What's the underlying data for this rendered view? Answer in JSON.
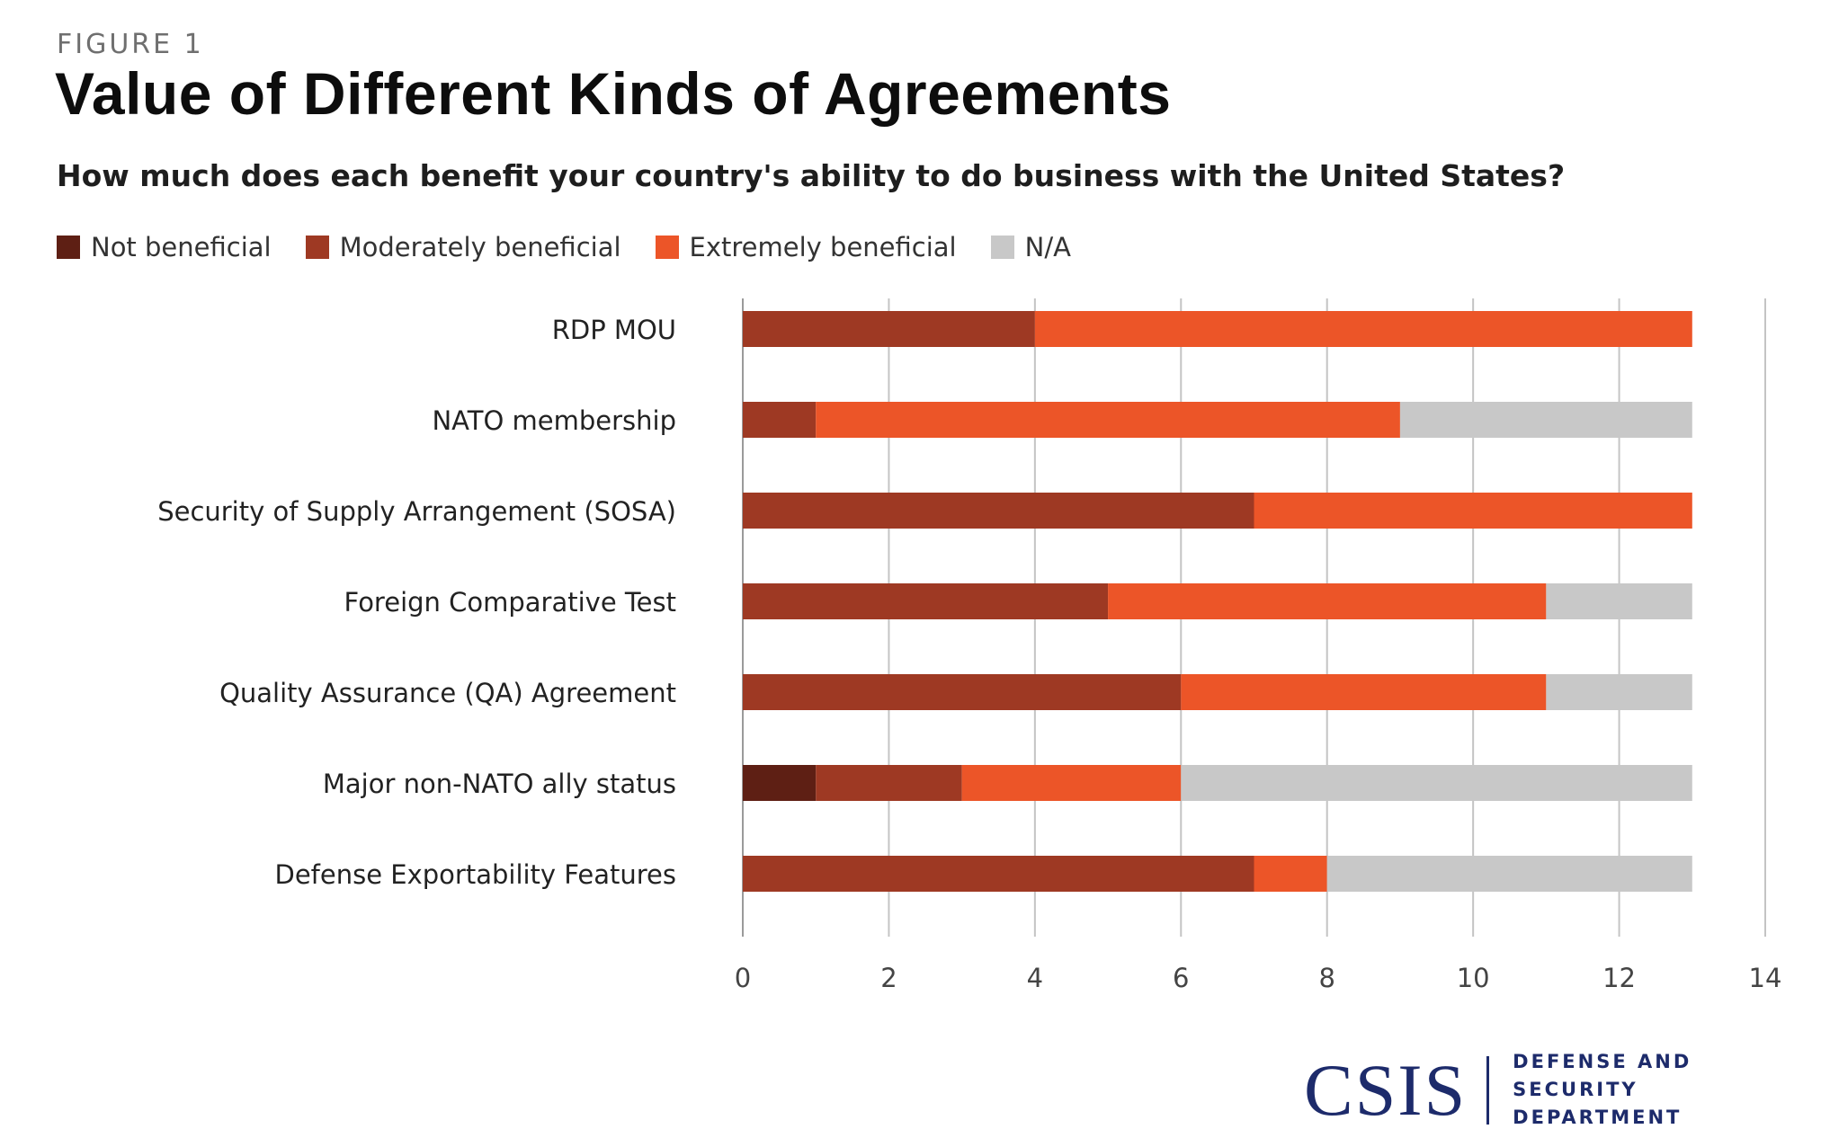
{
  "figure_label": "FIGURE 1",
  "title": "Value of Different Kinds of Agreements",
  "subtitle": "How much does each benefit your country's ability to do business with the United States?",
  "footer": {
    "logo_text": "CSIS",
    "department_line1": "DEFENSE AND SECURITY",
    "department_line2": "DEPARTMENT"
  },
  "chart_data": {
    "type": "bar",
    "orientation": "horizontal",
    "stacked": true,
    "categories": [
      "RDP MOU",
      "NATO membership",
      "Security of Supply Arrangement (SOSA)",
      "Foreign Comparative Test",
      "Quality Assurance (QA) Agreement",
      "Major non-NATO ally status",
      "Defense Exportability Features"
    ],
    "series": [
      {
        "name": "Not beneficial",
        "color": "#5e1f14",
        "values": [
          0,
          0,
          0,
          0,
          0,
          1,
          0
        ]
      },
      {
        "name": "Moderately beneficial",
        "color": "#9e3923",
        "values": [
          4,
          1,
          7,
          5,
          6,
          2,
          7
        ]
      },
      {
        "name": "Extremely beneficial",
        "color": "#ec5528",
        "values": [
          9,
          8,
          6,
          6,
          5,
          3,
          1
        ]
      },
      {
        "name": "N/A",
        "color": "#c8c8c8",
        "values": [
          0,
          4,
          0,
          2,
          2,
          7,
          5
        ]
      }
    ],
    "xlim": [
      0,
      14
    ],
    "xticks": [
      "0",
      "2",
      "4",
      "6",
      "8",
      "10",
      "12",
      "14"
    ],
    "grid": "vertical",
    "legend_position": "top-left"
  }
}
